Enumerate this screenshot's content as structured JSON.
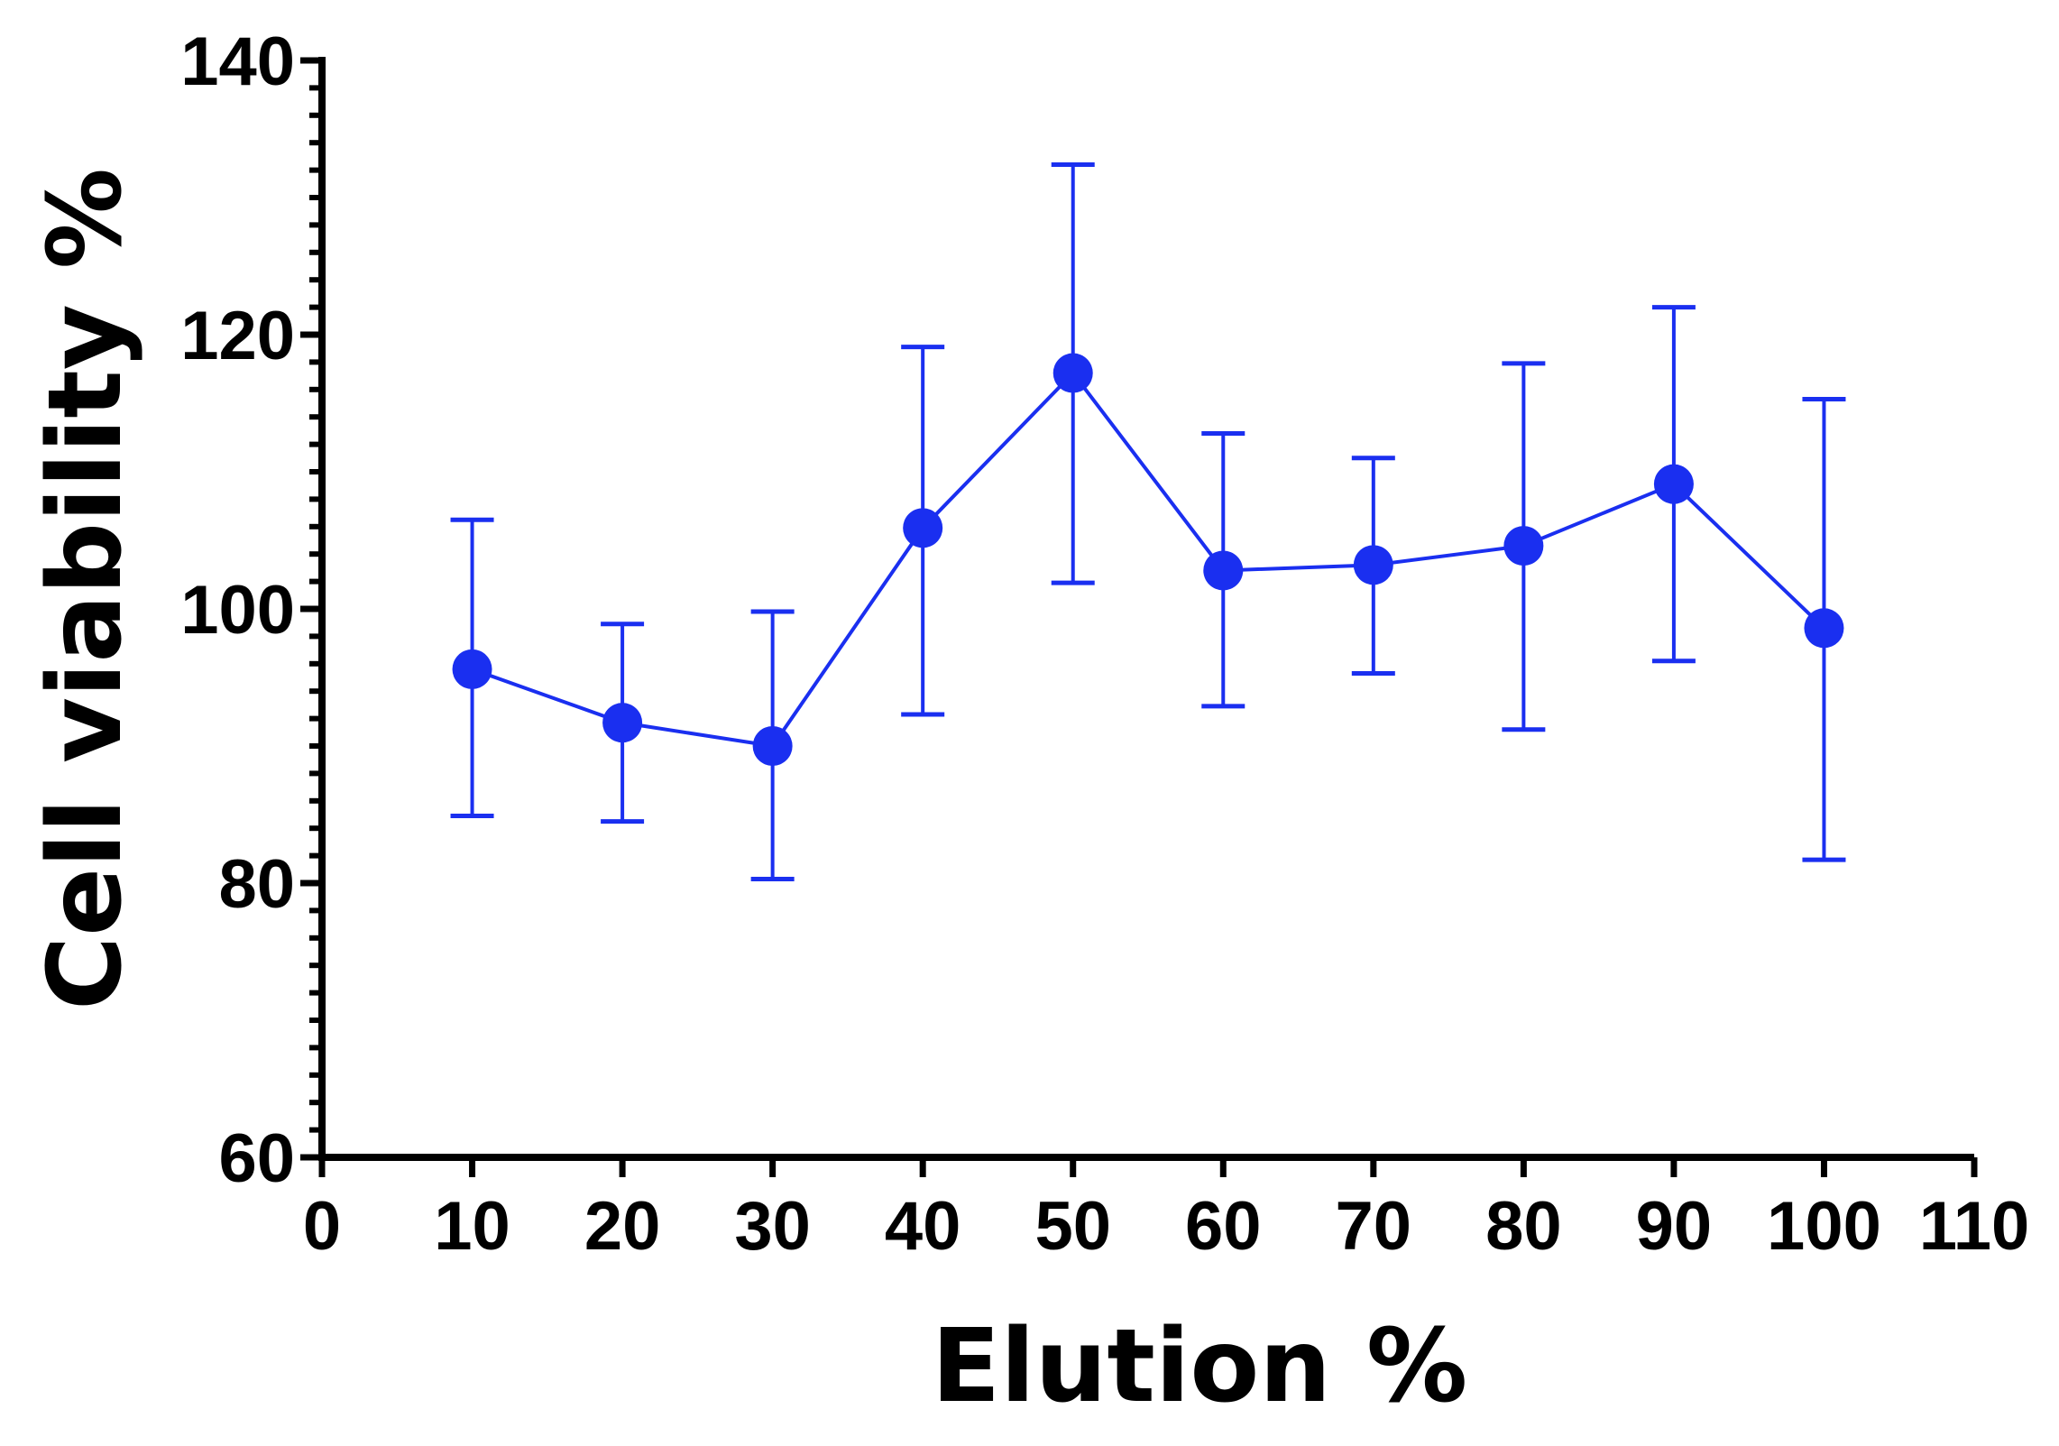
{
  "chart_data": {
    "type": "line",
    "title": "",
    "xlabel": "Elution %",
    "ylabel": "Cell viability %",
    "xlim": [
      0,
      110
    ],
    "ylim": [
      60,
      140
    ],
    "xticks": [
      0,
      10,
      20,
      30,
      40,
      50,
      60,
      70,
      80,
      90,
      100,
      110
    ],
    "yticks": [
      60,
      80,
      100,
      120,
      140
    ],
    "x_tick_labels": [
      "0",
      "10",
      "20",
      "30",
      "40",
      "50",
      "60",
      "70",
      "80",
      "90",
      "100",
      "110"
    ],
    "y_tick_labels": [
      "60",
      "80",
      "100",
      "120",
      "140"
    ],
    "grid": false,
    "color": "#1a2ff0",
    "series": [
      {
        "name": "Cell viability",
        "x": [
          10,
          20,
          30,
          40,
          50,
          60,
          70,
          80,
          90,
          100
        ],
        "y": [
          95.6,
          91.7,
          90.0,
          105.9,
          117.2,
          102.8,
          103.2,
          104.6,
          109.1,
          98.6
        ],
        "error_lower": [
          84.9,
          84.5,
          80.3,
          92.3,
          101.9,
          92.9,
          95.3,
          91.2,
          96.2,
          81.7
        ],
        "error_upper": [
          106.5,
          98.9,
          99.8,
          119.1,
          132.4,
          112.8,
          111.0,
          117.9,
          122.0,
          115.3
        ]
      }
    ]
  }
}
